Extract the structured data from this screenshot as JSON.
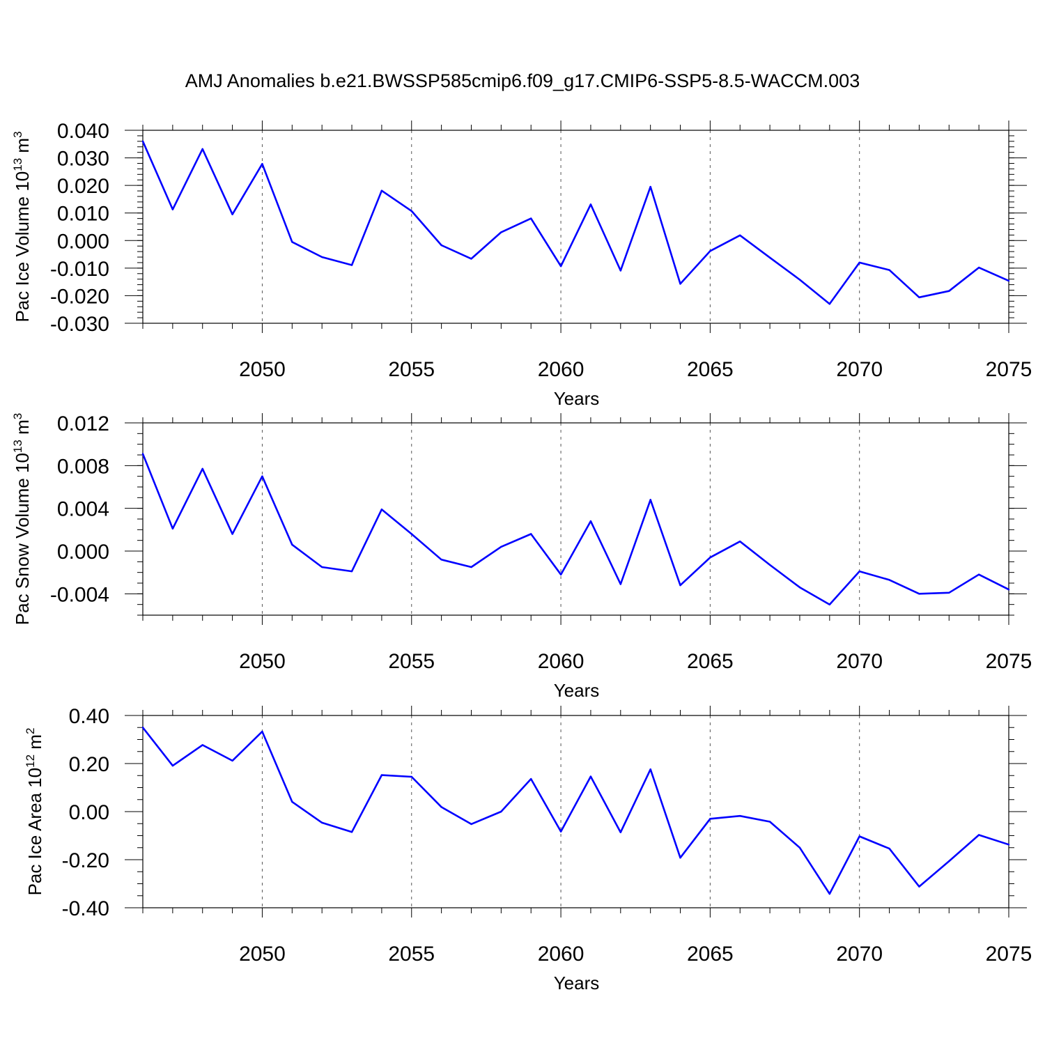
{
  "title": "AMJ Anomalies b.e21.BWSSP585cmip6.f09_g17.CMIP6-SSP5-8.5-WACCM.003",
  "chart_data": [
    {
      "type": "line",
      "ylabel_main": "Pac Ice Volume 10",
      "ylabel_exp1": "13",
      "ylabel_unit": " m",
      "ylabel_exp2": "3",
      "xlabel": "Years",
      "xlim": [
        2046,
        2075
      ],
      "ylim": [
        -0.03,
        0.04
      ],
      "y_major_ticks": [
        0.04,
        0.03,
        0.02,
        0.01,
        0.0,
        -0.01,
        -0.02,
        -0.03
      ],
      "y_tick_labels": [
        "0.040",
        "0.030",
        "0.020",
        "0.010",
        "0.000",
        "-0.010",
        "-0.020",
        "-0.030"
      ],
      "y_minor_step": 0.002,
      "x_major_ticks": [
        2050,
        2055,
        2060,
        2065,
        2070,
        2075
      ],
      "x_tick_labels": [
        "2050",
        "2055",
        "2060",
        "2065",
        "2070",
        "2075"
      ],
      "grid": "dashed vertical at x major ticks",
      "color": "#0000ff",
      "x": [
        2046,
        2047,
        2048,
        2049,
        2050,
        2051,
        2052,
        2053,
        2054,
        2055,
        2056,
        2057,
        2058,
        2059,
        2060,
        2061,
        2062,
        2063,
        2064,
        2065,
        2066,
        2067,
        2068,
        2069,
        2070,
        2071,
        2072,
        2073,
        2074,
        2075
      ],
      "values": [
        0.036,
        0.0113,
        0.0332,
        0.0095,
        0.0278,
        -0.0005,
        -0.006,
        -0.0089,
        0.0181,
        0.0107,
        -0.0017,
        -0.0066,
        0.003,
        0.008,
        -0.0093,
        0.0131,
        -0.0109,
        0.0195,
        -0.0157,
        -0.0038,
        0.0019,
        -0.0062,
        -0.0142,
        -0.023,
        -0.008,
        -0.0107,
        -0.0206,
        -0.0183,
        -0.0098,
        -0.0146
      ]
    },
    {
      "type": "line",
      "ylabel_main": "Pac Snow Volume 10",
      "ylabel_exp1": "13",
      "ylabel_unit": " m",
      "ylabel_exp2": "3",
      "xlabel": "Years",
      "xlim": [
        2046,
        2075
      ],
      "ylim": [
        -0.006,
        0.012
      ],
      "y_major_ticks": [
        0.012,
        0.008,
        0.004,
        0.0,
        -0.004
      ],
      "y_tick_labels": [
        "0.012",
        "0.008",
        "0.004",
        "0.000",
        "-0.004"
      ],
      "y_minor_step": 0.001,
      "x_major_ticks": [
        2050,
        2055,
        2060,
        2065,
        2070,
        2075
      ],
      "x_tick_labels": [
        "2050",
        "2055",
        "2060",
        "2065",
        "2070",
        "2075"
      ],
      "grid": "dashed vertical at x major ticks",
      "color": "#0000ff",
      "x": [
        2046,
        2047,
        2048,
        2049,
        2050,
        2051,
        2052,
        2053,
        2054,
        2055,
        2056,
        2057,
        2058,
        2059,
        2060,
        2061,
        2062,
        2063,
        2064,
        2065,
        2066,
        2067,
        2068,
        2069,
        2070,
        2071,
        2072,
        2073,
        2074,
        2075
      ],
      "values": [
        0.0091,
        0.0021,
        0.0077,
        0.0016,
        0.007,
        0.0006,
        -0.0015,
        -0.0019,
        0.0039,
        0.0016,
        -0.0008,
        -0.0015,
        0.0004,
        0.0016,
        -0.0022,
        0.0028,
        -0.0031,
        0.0048,
        -0.0032,
        -0.0006,
        0.0009,
        -0.0013,
        -0.0034,
        -0.005,
        -0.0019,
        -0.0027,
        -0.004,
        -0.0039,
        -0.0022,
        -0.0036
      ]
    },
    {
      "type": "line",
      "ylabel_main": "Pac Ice Area 10",
      "ylabel_exp1": "12",
      "ylabel_unit": " m",
      "ylabel_exp2": "2",
      "xlabel": "Years",
      "xlim": [
        2046,
        2075
      ],
      "ylim": [
        -0.4,
        0.4
      ],
      "y_major_ticks": [
        0.4,
        0.2,
        0.0,
        -0.2,
        -0.4
      ],
      "y_tick_labels": [
        "0.40",
        "0.20",
        "0.00",
        "-0.20",
        "-0.40"
      ],
      "y_minor_step": 0.05,
      "x_major_ticks": [
        2050,
        2055,
        2060,
        2065,
        2070,
        2075
      ],
      "x_tick_labels": [
        "2050",
        "2055",
        "2060",
        "2065",
        "2070",
        "2075"
      ],
      "grid": "dashed vertical at x major ticks",
      "color": "#0000ff",
      "x": [
        2046,
        2047,
        2048,
        2049,
        2050,
        2051,
        2052,
        2053,
        2054,
        2055,
        2056,
        2057,
        2058,
        2059,
        2060,
        2061,
        2062,
        2063,
        2064,
        2065,
        2066,
        2067,
        2068,
        2069,
        2070,
        2071,
        2072,
        2073,
        2074,
        2075
      ],
      "values": [
        0.35,
        0.191,
        0.277,
        0.212,
        0.333,
        0.041,
        -0.046,
        -0.085,
        0.152,
        0.145,
        0.019,
        -0.052,
        0.0,
        0.136,
        -0.083,
        0.146,
        -0.086,
        0.176,
        -0.192,
        -0.03,
        -0.018,
        -0.042,
        -0.15,
        -0.342,
        -0.103,
        -0.154,
        -0.312,
        -0.206,
        -0.097,
        -0.137
      ]
    }
  ]
}
